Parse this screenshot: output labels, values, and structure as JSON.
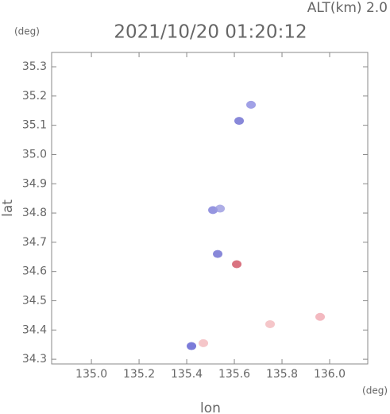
{
  "chart_data": {
    "type": "scatter",
    "title": "2021/10/20 01:20:12",
    "subtitle": "ALT(km) 2.0",
    "x_label": "lon",
    "y_label": "lat",
    "x_unit": "(deg)",
    "y_unit": "(deg)",
    "x": [
      135.67,
      135.62,
      135.51,
      135.54,
      135.53,
      135.61,
      135.42,
      135.47,
      135.75,
      135.96
    ],
    "y": [
      35.17,
      35.115,
      34.81,
      34.815,
      34.66,
      34.625,
      34.345,
      34.355,
      34.42,
      34.445
    ],
    "colors": [
      "#8a8ae0",
      "#6a6ad0",
      "#7a7ad8",
      "#9a9ae0",
      "#6a6ad0",
      "#d05060",
      "#5a5ad0",
      "#f2b8bc",
      "#f2b8bc",
      "#f0a8b0"
    ],
    "xlim": [
      134.833,
      136.16
    ],
    "ylim": [
      34.284,
      35.349
    ],
    "xticks": [
      {
        "value": 135,
        "label": "135.0"
      },
      135.2,
      135.4,
      135.6,
      135.8,
      {
        "value": 136,
        "label": "136.0"
      }
    ],
    "yticks": [
      34.3,
      34.4,
      34.5,
      34.6,
      34.7,
      34.8,
      34.9,
      {
        "value": 35,
        "label": "35.0"
      },
      35.1,
      35.2,
      35.3
    ]
  }
}
